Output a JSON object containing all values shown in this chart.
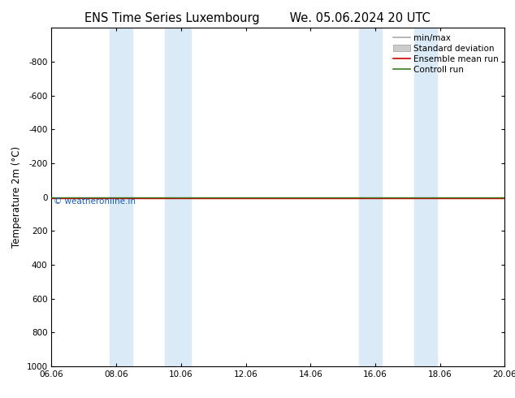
{
  "title": "ENS Time Series Luxembourg",
  "title2": "We. 05.06.2024 20 UTC",
  "ylabel": "Temperature 2m (°C)",
  "ylim_bottom": 1000,
  "ylim_top": -1000,
  "yticks": [
    -800,
    -600,
    -400,
    -200,
    0,
    200,
    400,
    600,
    800,
    1000
  ],
  "xlim_start": 0.0,
  "xlim_end": 14.0,
  "xtick_labels": [
    "06.06",
    "08.06",
    "10.06",
    "12.06",
    "14.06",
    "16.06",
    "18.06",
    "20.06"
  ],
  "xtick_positions": [
    0,
    2,
    4,
    6,
    8,
    10,
    12,
    14
  ],
  "shaded_bands": [
    [
      1.8,
      2.5
    ],
    [
      3.5,
      4.3
    ],
    [
      9.5,
      10.2
    ],
    [
      11.2,
      11.9
    ]
  ],
  "shade_color": "#daeaf7",
  "green_line_color": "#3a7d1e",
  "red_line_color": "#cc0000",
  "watermark": "© weatheronline.in",
  "watermark_color": "#1a5eb5",
  "legend_items": [
    {
      "label": "min/max",
      "color": "#aaaaaa",
      "lw": 1.2,
      "type": "line"
    },
    {
      "label": "Standard deviation",
      "color": "#cccccc",
      "lw": 5,
      "type": "patch"
    },
    {
      "label": "Ensemble mean run",
      "color": "#cc0000",
      "lw": 1.2,
      "type": "line"
    },
    {
      "label": "Controll run",
      "color": "#3a7d1e",
      "lw": 1.2,
      "type": "line"
    }
  ],
  "bg_color": "#ffffff",
  "title_fontsize": 10.5,
  "axis_fontsize": 8.5,
  "tick_fontsize": 7.5,
  "legend_fontsize": 7.5
}
